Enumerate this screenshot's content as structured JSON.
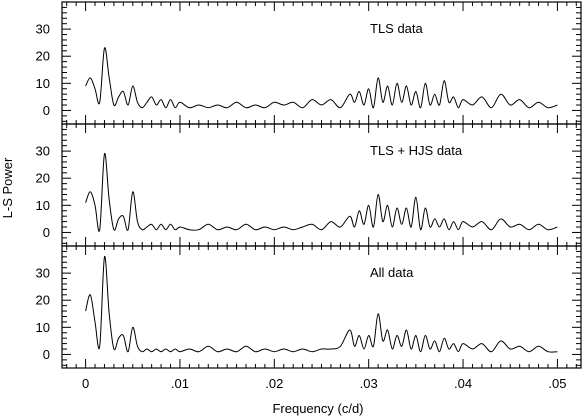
{
  "chart_data": {
    "type": "line",
    "xlabel": "Frequency (c/d)",
    "ylabel": "L-S Power",
    "xlim": [
      -0.0025,
      0.0525
    ],
    "ylim": [
      -5,
      40
    ],
    "x_tick_labels": [
      "0",
      ".01",
      ".02",
      ".03",
      ".04",
      ".05"
    ],
    "x_ticks": [
      0,
      0.01,
      0.02,
      0.03,
      0.04,
      0.05
    ],
    "y_ticks": [
      0,
      10,
      20,
      30
    ],
    "y_tick_labels": [
      "0",
      "10",
      "20",
      "30"
    ],
    "grid": false,
    "panels": [
      {
        "label": "TLS data",
        "series": [
          {
            "x": [
              0.0,
              0.0005,
              0.001,
              0.0015,
              0.002,
              0.0025,
              0.003,
              0.0035,
              0.004,
              0.0045,
              0.005,
              0.0055,
              0.006,
              0.0065,
              0.007,
              0.0075,
              0.008,
              0.0085,
              0.009,
              0.0095,
              0.01,
              0.011,
              0.012,
              0.013,
              0.014,
              0.015,
              0.016,
              0.017,
              0.018,
              0.019,
              0.02,
              0.021,
              0.022,
              0.023,
              0.024,
              0.025,
              0.026,
              0.027,
              0.028,
              0.0285,
              0.029,
              0.0295,
              0.03,
              0.0305,
              0.031,
              0.0315,
              0.032,
              0.0325,
              0.033,
              0.0335,
              0.034,
              0.0345,
              0.035,
              0.0355,
              0.036,
              0.0365,
              0.037,
              0.0375,
              0.038,
              0.0385,
              0.039,
              0.0395,
              0.04,
              0.041,
              0.042,
              0.043,
              0.044,
              0.045,
              0.046,
              0.047,
              0.048,
              0.049,
              0.05
            ],
            "y": [
              9,
              12,
              8,
              3,
              23,
              12,
              2,
              5,
              7,
              2,
              9,
              3,
              1,
              3,
              5,
              2,
              4,
              1,
              4,
              1,
              3,
              1,
              2,
              1,
              2,
              1,
              3,
              1,
              2,
              1,
              3,
              2,
              3,
              1,
              4,
              2,
              4,
              1,
              6,
              3,
              7,
              2,
              8,
              1,
              12,
              3,
              9,
              2,
              10,
              3,
              9,
              2,
              7,
              1,
              10,
              2,
              6,
              2,
              11,
              3,
              5,
              1,
              4,
              2,
              5,
              1,
              6,
              2,
              4,
              1,
              3,
              1,
              2
            ]
          }
        ]
      },
      {
        "label": "TLS + HJS data",
        "series": [
          {
            "x": [
              0.0,
              0.0005,
              0.001,
              0.0015,
              0.002,
              0.0025,
              0.003,
              0.0035,
              0.004,
              0.0045,
              0.005,
              0.0055,
              0.006,
              0.0065,
              0.007,
              0.0075,
              0.008,
              0.0085,
              0.009,
              0.0095,
              0.01,
              0.011,
              0.012,
              0.013,
              0.014,
              0.015,
              0.016,
              0.017,
              0.018,
              0.019,
              0.02,
              0.021,
              0.022,
              0.023,
              0.024,
              0.025,
              0.026,
              0.027,
              0.028,
              0.0285,
              0.029,
              0.0295,
              0.03,
              0.0305,
              0.031,
              0.0315,
              0.032,
              0.0325,
              0.033,
              0.0335,
              0.034,
              0.0345,
              0.035,
              0.0355,
              0.036,
              0.0365,
              0.037,
              0.0375,
              0.038,
              0.0385,
              0.039,
              0.0395,
              0.04,
              0.041,
              0.042,
              0.043,
              0.044,
              0.045,
              0.046,
              0.047,
              0.048,
              0.049,
              0.05
            ],
            "y": [
              11,
              15,
              10,
              1,
              29,
              12,
              1,
              5,
              6,
              1,
              15,
              4,
              1,
              2,
              3,
              1,
              3,
              1,
              3,
              1,
              2,
              1,
              1,
              3,
              1,
              2,
              1,
              3,
              1,
              2,
              1,
              2,
              1,
              2,
              3,
              1,
              4,
              2,
              6,
              2,
              8,
              3,
              10,
              2,
              14,
              4,
              10,
              2,
              9,
              3,
              9,
              2,
              13,
              1,
              9,
              2,
              5,
              2,
              5,
              1,
              4,
              1,
              4,
              2,
              4,
              1,
              5,
              2,
              3,
              1,
              3,
              1,
              2
            ]
          }
        ]
      },
      {
        "label": "All data",
        "series": [
          {
            "x": [
              0.0,
              0.0005,
              0.001,
              0.0015,
              0.002,
              0.0025,
              0.003,
              0.0035,
              0.004,
              0.0045,
              0.005,
              0.0055,
              0.006,
              0.0065,
              0.007,
              0.0075,
              0.008,
              0.0085,
              0.009,
              0.0095,
              0.01,
              0.011,
              0.012,
              0.013,
              0.014,
              0.015,
              0.016,
              0.017,
              0.018,
              0.019,
              0.02,
              0.021,
              0.022,
              0.023,
              0.024,
              0.025,
              0.026,
              0.027,
              0.028,
              0.0285,
              0.029,
              0.0295,
              0.03,
              0.0305,
              0.031,
              0.0315,
              0.032,
              0.0325,
              0.033,
              0.0335,
              0.034,
              0.0345,
              0.035,
              0.0355,
              0.036,
              0.0365,
              0.037,
              0.0375,
              0.038,
              0.0385,
              0.039,
              0.0395,
              0.04,
              0.041,
              0.042,
              0.043,
              0.044,
              0.045,
              0.046,
              0.047,
              0.048,
              0.049,
              0.05
            ],
            "y": [
              16,
              22,
              12,
              3,
              36,
              15,
              2,
              6,
              7,
              1,
              10,
              3,
              1,
              2,
              1,
              2,
              1,
              2,
              1,
              2,
              1,
              2,
              1,
              3,
              1,
              2,
              1,
              3,
              1,
              2,
              1,
              2,
              1,
              2,
              1,
              2,
              2,
              3,
              9,
              3,
              7,
              2,
              7,
              3,
              15,
              5,
              9,
              2,
              7,
              3,
              9,
              2,
              7,
              1,
              7,
              2,
              5,
              1,
              6,
              2,
              4,
              1,
              4,
              2,
              4,
              1,
              5,
              2,
              3,
              1,
              3,
              1,
              1
            ]
          }
        ]
      }
    ]
  }
}
